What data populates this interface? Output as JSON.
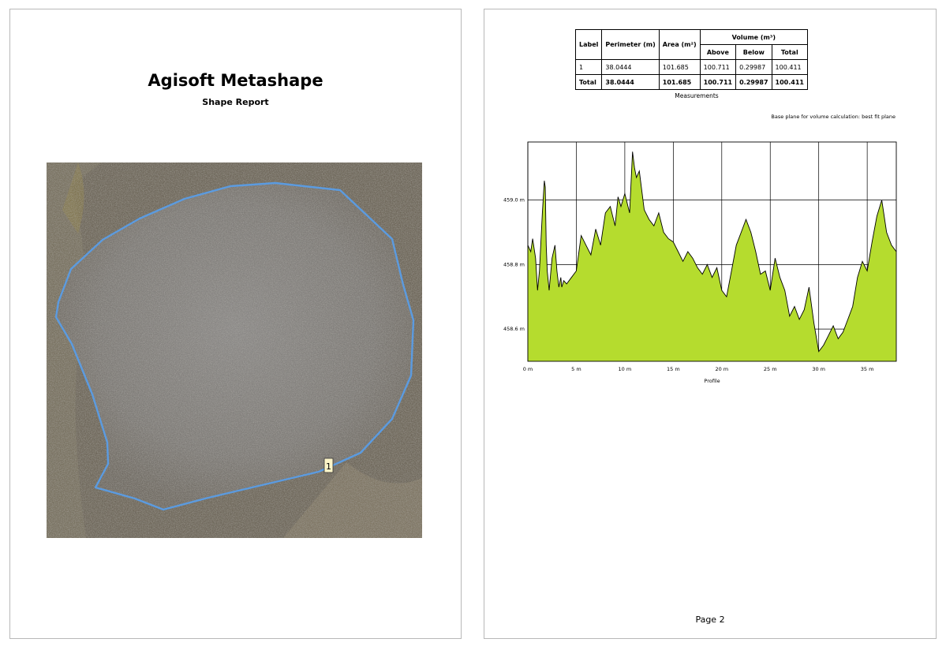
{
  "report": {
    "title": "Agisoft Metashape",
    "subtitle": "Shape Report",
    "shape_marker_label": "1"
  },
  "table": {
    "headers": {
      "label": "Label",
      "perimeter": "Perimeter (m)",
      "area": "Area (m²)",
      "volume": "Volume (m³)",
      "above": "Above",
      "below": "Below",
      "total": "Total"
    },
    "rows": [
      {
        "label": "1",
        "perimeter": "38.0444",
        "area": "101.685",
        "above": "100.711",
        "below": "0.29987",
        "total": "100.411"
      },
      {
        "label": "Total",
        "perimeter": "38.0444",
        "area": "101.685",
        "above": "100.711",
        "below": "0.29987",
        "total": "100.411"
      }
    ],
    "caption": "Measurements"
  },
  "base_plane_note": "Base plane for volume calculation: best fit plane",
  "page_number": "Page 2",
  "colors": {
    "profile_fill": "#b5dc2e",
    "shape_outline": "#5b9be0",
    "marker_bg": "#fdf5c8"
  },
  "chart_data": {
    "type": "area",
    "title": "",
    "xlabel": "Profile",
    "ylabel": "",
    "xlim": [
      0,
      38
    ],
    "ylim": [
      458.5,
      459.18
    ],
    "x_ticks": [
      0,
      5,
      10,
      15,
      20,
      25,
      30,
      35
    ],
    "x_tick_labels": [
      "0 m",
      "5 m",
      "10 m",
      "15 m",
      "20 m",
      "25 m",
      "30 m",
      "35 m"
    ],
    "y_ticks": [
      458.6,
      458.8,
      459.0
    ],
    "y_tick_labels": [
      "458.6 m",
      "458.8 m",
      "459.0 m"
    ],
    "grid": true,
    "series": [
      {
        "x": [
          0,
          0.3,
          0.5,
          0.8,
          1.0,
          1.2,
          1.5,
          1.7,
          1.8,
          1.9,
          2.0,
          2.2,
          2.5,
          2.8,
          3.0,
          3.2,
          3.4,
          3.5,
          3.7,
          4.0,
          4.5,
          5.0,
          5.5,
          6.0,
          6.5,
          7.0,
          7.5,
          8.0,
          8.5,
          9.0,
          9.3,
          9.6,
          10.0,
          10.5,
          10.8,
          11.0,
          11.2,
          11.5,
          12.0,
          12.5,
          13.0,
          13.5,
          14.0,
          14.5,
          15.0,
          15.5,
          16.0,
          16.5,
          17.0,
          17.5,
          18.0,
          18.5,
          19.0,
          19.5,
          20.0,
          20.5,
          21.0,
          21.5,
          22.0,
          22.5,
          23.0,
          23.5,
          24.0,
          24.5,
          25.0,
          25.5,
          26.0,
          26.5,
          27.0,
          27.5,
          28.0,
          28.5,
          29.0,
          29.5,
          30.0,
          30.5,
          31.0,
          31.5,
          32.0,
          32.5,
          33.0,
          33.5,
          34.0,
          34.5,
          35.0,
          35.5,
          36.0,
          36.5,
          37.0,
          37.5,
          38.0
        ],
        "y": [
          458.86,
          458.84,
          458.88,
          458.82,
          458.72,
          458.78,
          458.96,
          459.06,
          459.04,
          458.86,
          458.78,
          458.72,
          458.82,
          458.86,
          458.78,
          458.73,
          458.76,
          458.73,
          458.75,
          458.74,
          458.76,
          458.78,
          458.89,
          458.86,
          458.83,
          458.91,
          458.86,
          458.96,
          458.98,
          458.92,
          459.01,
          458.98,
          459.02,
          458.96,
          459.15,
          459.1,
          459.07,
          459.09,
          458.97,
          458.94,
          458.92,
          458.96,
          458.9,
          458.88,
          458.87,
          458.84,
          458.81,
          458.84,
          458.82,
          458.79,
          458.77,
          458.8,
          458.76,
          458.79,
          458.72,
          458.7,
          458.78,
          458.86,
          458.9,
          458.94,
          458.9,
          458.84,
          458.77,
          458.78,
          458.72,
          458.82,
          458.76,
          458.72,
          458.64,
          458.67,
          458.63,
          458.66,
          458.73,
          458.62,
          458.53,
          458.55,
          458.58,
          458.61,
          458.57,
          458.59,
          458.63,
          458.67,
          458.76,
          458.81,
          458.78,
          458.87,
          458.95,
          459.0,
          458.9,
          458.86,
          458.84
        ]
      }
    ]
  }
}
